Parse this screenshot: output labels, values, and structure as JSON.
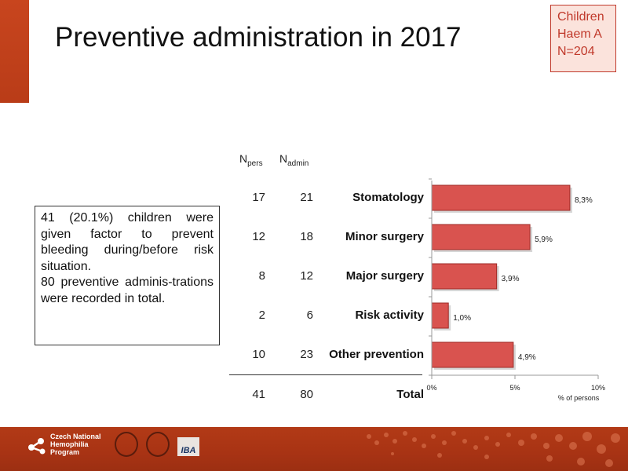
{
  "slide": {
    "title": "Preventive administration in 2017",
    "badge": {
      "line1": "Children",
      "line2": "Haem A",
      "line3": "N=204"
    },
    "info": {
      "para1": "41 (20.1%) children were given factor to prevent bleeding during/before risk situation.",
      "para2": "80 preventive adminis-trations were recorded in total."
    },
    "columns": {
      "npers": "N",
      "npers_sub": "pers",
      "nadmin": "N",
      "nadmin_sub": "admin"
    },
    "total": {
      "label": "Total",
      "npers": "41",
      "nadmin": "80"
    }
  },
  "chart_data": {
    "type": "bar",
    "orientation": "horizontal",
    "categories": [
      "Stomatology",
      "Minor surgery",
      "Major surgery",
      "Risk activity",
      "Other prevention"
    ],
    "values": [
      8.3,
      5.9,
      3.9,
      1.0,
      4.9
    ],
    "value_labels": [
      "8,3%",
      "5,9%",
      "3,9%",
      "1,0%",
      "4,9%"
    ],
    "npers": [
      "17",
      "12",
      "8",
      "2",
      "10"
    ],
    "nadmin": [
      "21",
      "18",
      "12",
      "6",
      "23"
    ],
    "xlim": [
      0,
      10
    ],
    "xticks": [
      "0%",
      "5%",
      "10%"
    ],
    "xlabel": "% of persons",
    "bar_color": "#d9534f",
    "grid": false
  },
  "footer": {
    "logo_line1": "Czech National",
    "logo_line2": "Hemophilia",
    "logo_line3": "Program",
    "iba_label": "IBA"
  }
}
